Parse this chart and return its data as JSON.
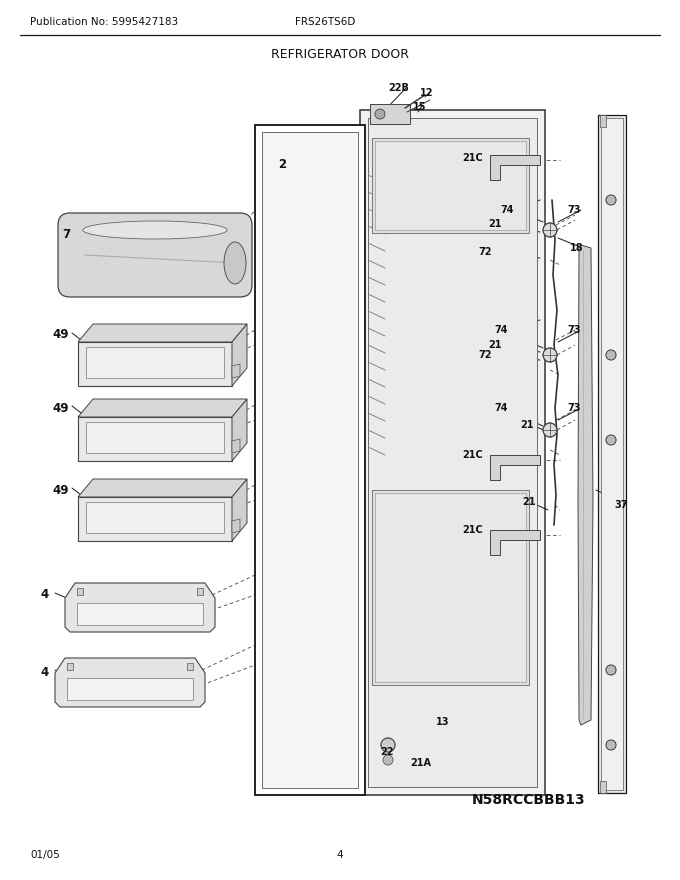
{
  "title": "REFRIGERATOR DOOR",
  "pub_no": "Publication No: 5995427183",
  "model": "FRS26TS6D",
  "part_no": "N58RCCBBB13",
  "date": "01/05",
  "page": "4",
  "bg_color": "#ffffff",
  "lc": "#1a1a1a",
  "tc": "#111111",
  "fig_w": 6.8,
  "fig_h": 8.8,
  "dpi": 100
}
